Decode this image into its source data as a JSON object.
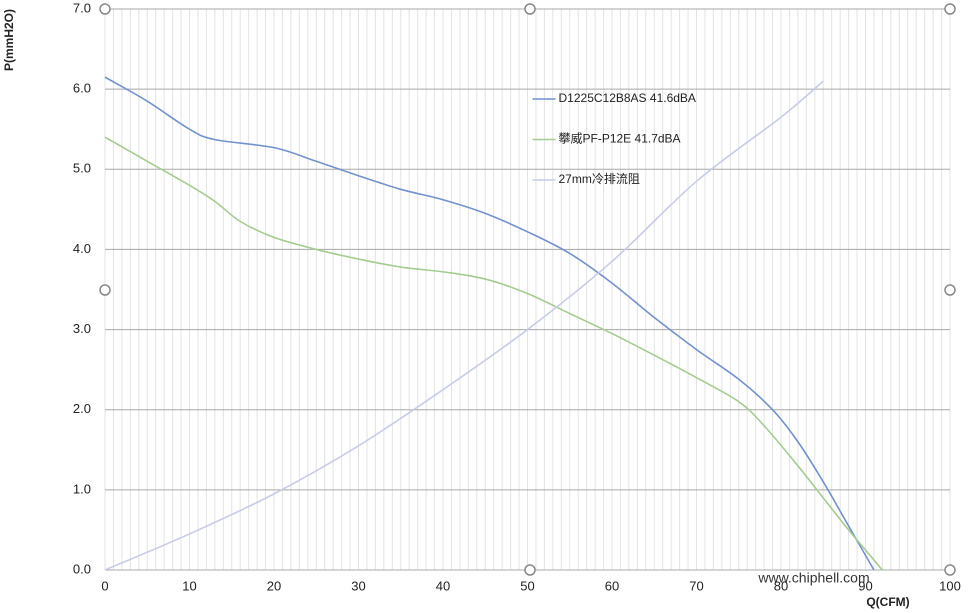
{
  "chart_data": {
    "type": "line",
    "y_label": "P(mmH2O)",
    "x_label": "Q(CFM)",
    "watermark": "www.chiphell.com",
    "xlim": [
      0,
      100
    ],
    "xticks": [
      0,
      10,
      20,
      30,
      40,
      50,
      60,
      70,
      80,
      90,
      100
    ],
    "x_minor_step": 1,
    "ylim": [
      0,
      7
    ],
    "yticks": [
      {
        "value": 0,
        "label": "0.0"
      },
      {
        "value": 1,
        "label": "1.0"
      },
      {
        "value": 2,
        "label": "2.0"
      },
      {
        "value": 3,
        "label": "3.0"
      },
      {
        "value": 4,
        "label": "4.0"
      },
      {
        "value": 5,
        "label": "5.0"
      },
      {
        "value": 6,
        "label": "6.0"
      },
      {
        "value": 7,
        "label": "7.0"
      }
    ],
    "grid": true,
    "legend": "upper-center",
    "series": [
      {
        "name": "D1225C12B8AS 41.6dBA",
        "color": "#7191cf",
        "x": [
          0,
          5,
          10,
          13,
          20,
          25,
          30,
          35,
          40,
          45,
          50,
          55,
          60,
          65,
          70,
          75,
          79,
          82,
          85,
          88,
          91
        ],
        "values": [
          6.15,
          5.85,
          5.5,
          5.37,
          5.27,
          5.1,
          4.92,
          4.75,
          4.62,
          4.45,
          4.22,
          3.95,
          3.58,
          3.15,
          2.75,
          2.38,
          2.0,
          1.6,
          1.1,
          0.55,
          0.0
        ]
      },
      {
        "name": "攀威PF-P12E 41.7dBA",
        "color": "#a3cc8e",
        "x": [
          0,
          5,
          10,
          13,
          16,
          20,
          25,
          30,
          35,
          40,
          45,
          50,
          55,
          60,
          65,
          70,
          75,
          78,
          82,
          85,
          88,
          92
        ],
        "values": [
          5.4,
          5.1,
          4.8,
          4.6,
          4.35,
          4.15,
          4.0,
          3.88,
          3.78,
          3.72,
          3.63,
          3.45,
          3.2,
          2.95,
          2.68,
          2.4,
          2.1,
          1.8,
          1.3,
          0.9,
          0.5,
          0.0
        ]
      },
      {
        "name": "27mm冷排流阻",
        "color": "#c6cce9",
        "x": [
          0,
          10,
          20,
          30,
          40,
          50,
          60,
          70,
          80,
          85
        ],
        "values": [
          0,
          0.45,
          0.95,
          1.55,
          2.25,
          3.0,
          3.85,
          4.85,
          5.65,
          6.1
        ]
      }
    ]
  }
}
